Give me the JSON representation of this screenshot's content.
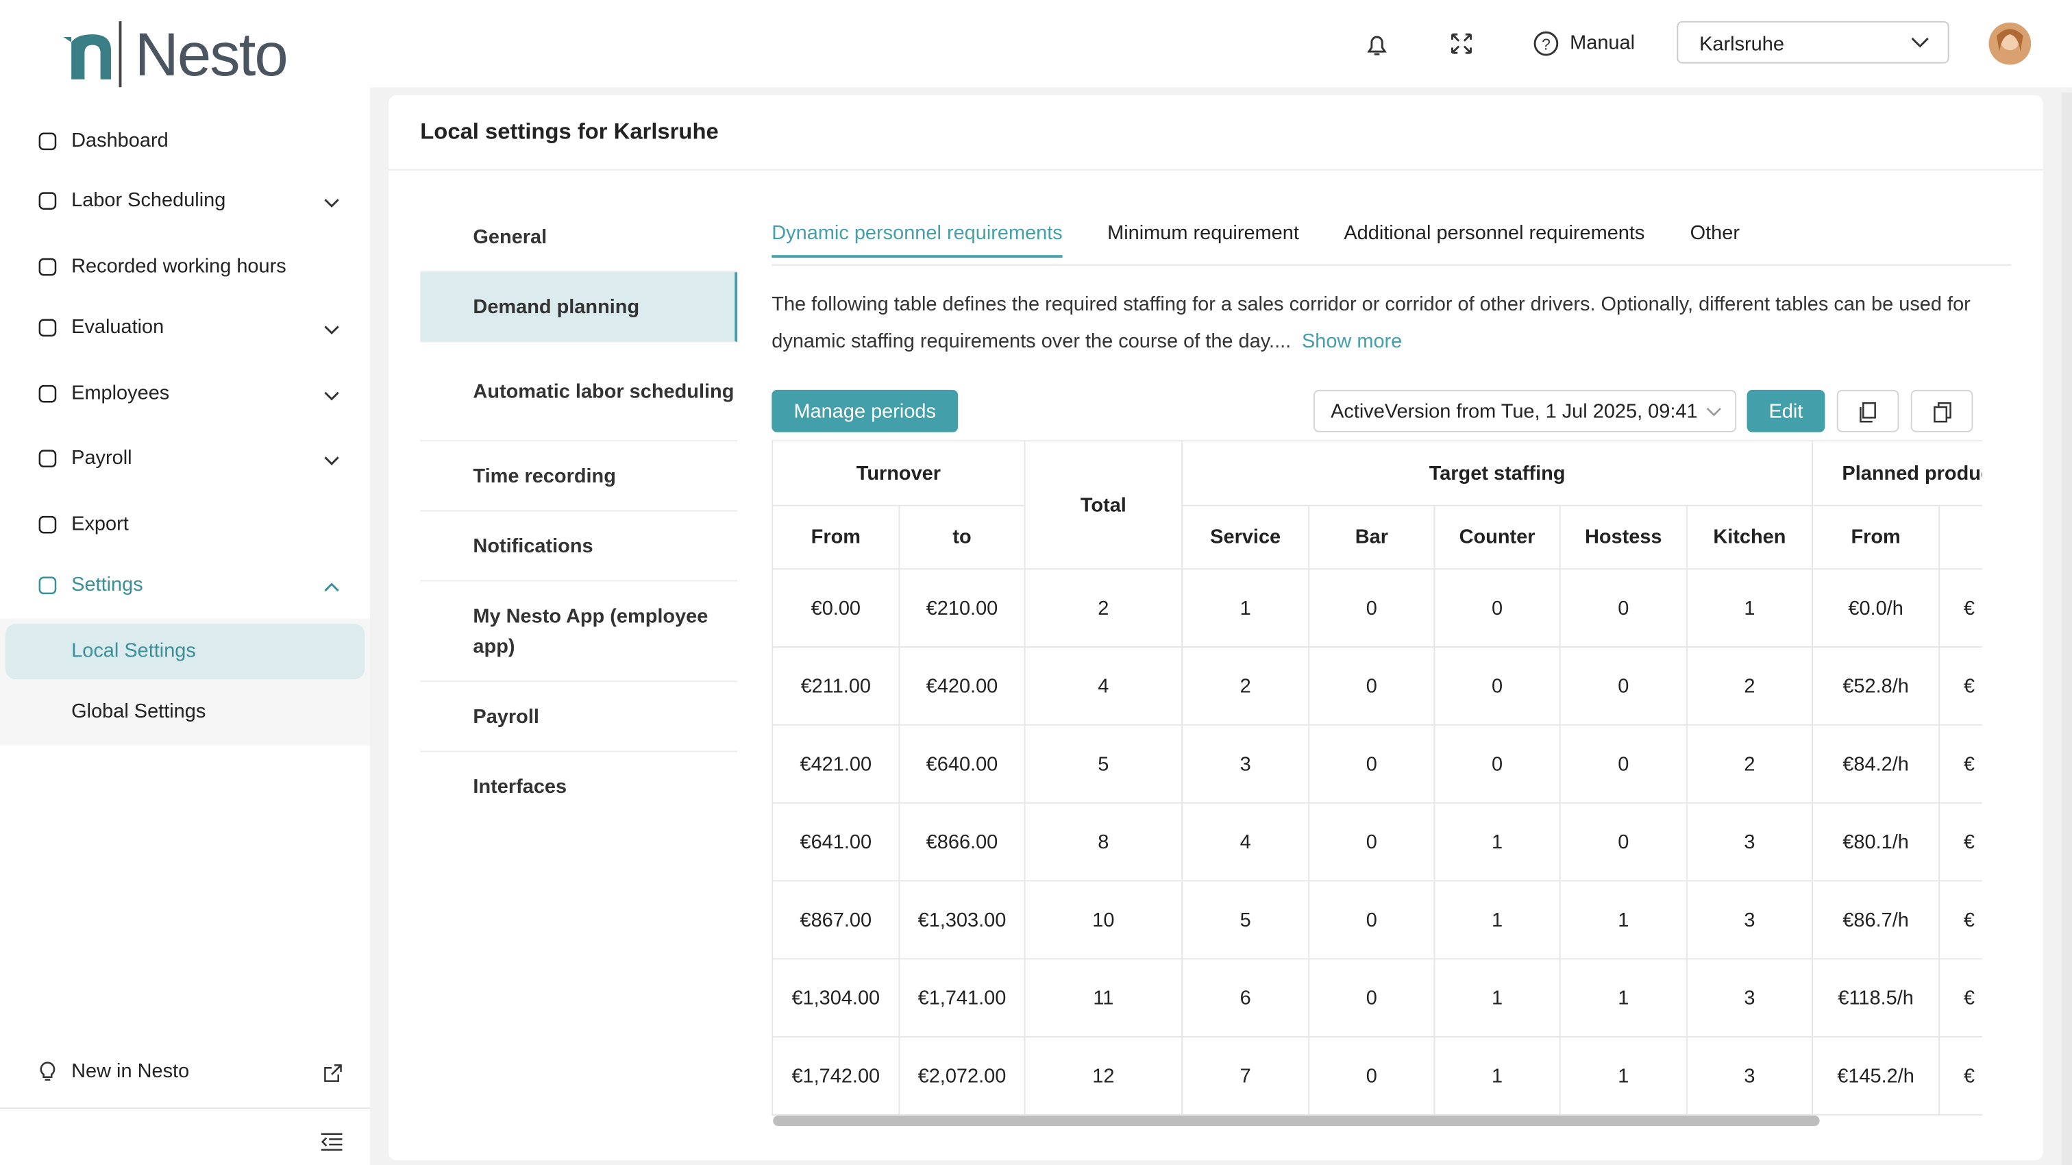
{
  "brand": "Nesto",
  "header": {
    "manual": "Manual",
    "location": "Karlsruhe"
  },
  "sidebar": {
    "items": [
      "Dashboard",
      "Labor Scheduling",
      "Recorded working hours",
      "Evaluation",
      "Employees",
      "Payroll",
      "Export",
      "Settings"
    ],
    "subitems": [
      "Local Settings",
      "Global Settings"
    ],
    "footer": "New in Nesto"
  },
  "page": {
    "title": "Local settings for Karlsruhe",
    "submenu": [
      "General",
      "Demand planning",
      "Automatic labor scheduling",
      "Time recording",
      "Notifications",
      "My Nesto App (employee app)",
      "Payroll",
      "Interfaces"
    ],
    "tabs": [
      "Dynamic personnel requirements",
      "Minimum requirement",
      "Additional personnel requirements",
      "Other"
    ],
    "description": "The following table defines the required staffing for a sales corridor or corridor of other drivers. Optionally, different tables can be used for dynamic staffing requirements over the course of the day....",
    "show_more": "Show more",
    "manage_periods": "Manage periods",
    "version": "ActiveVersion from Tue, 1 Jul 2025, 09:41",
    "edit": "Edit"
  },
  "table": {
    "groups": [
      "Turnover",
      "Total",
      "Target staffing",
      "Planned produc"
    ],
    "columns": [
      "From",
      "to",
      "Service",
      "Bar",
      "Counter",
      "Hostess",
      "Kitchen",
      "From"
    ],
    "rows": [
      [
        "€0.00",
        "€210.00",
        2,
        1,
        0,
        0,
        0,
        1,
        "€0.0/h",
        "€"
      ],
      [
        "€211.00",
        "€420.00",
        4,
        2,
        0,
        0,
        0,
        2,
        "€52.8/h",
        "€"
      ],
      [
        "€421.00",
        "€640.00",
        5,
        3,
        0,
        0,
        0,
        2,
        "€84.2/h",
        "€"
      ],
      [
        "€641.00",
        "€866.00",
        8,
        4,
        0,
        1,
        0,
        3,
        "€80.1/h",
        "€"
      ],
      [
        "€867.00",
        "€1,303.00",
        10,
        5,
        0,
        1,
        1,
        3,
        "€86.7/h",
        "€"
      ],
      [
        "€1,304.00",
        "€1,741.00",
        11,
        6,
        0,
        1,
        1,
        3,
        "€118.5/h",
        "€"
      ],
      [
        "€1,742.00",
        "€2,072.00",
        12,
        7,
        0,
        1,
        1,
        3,
        "€145.2/h",
        "€"
      ]
    ]
  }
}
